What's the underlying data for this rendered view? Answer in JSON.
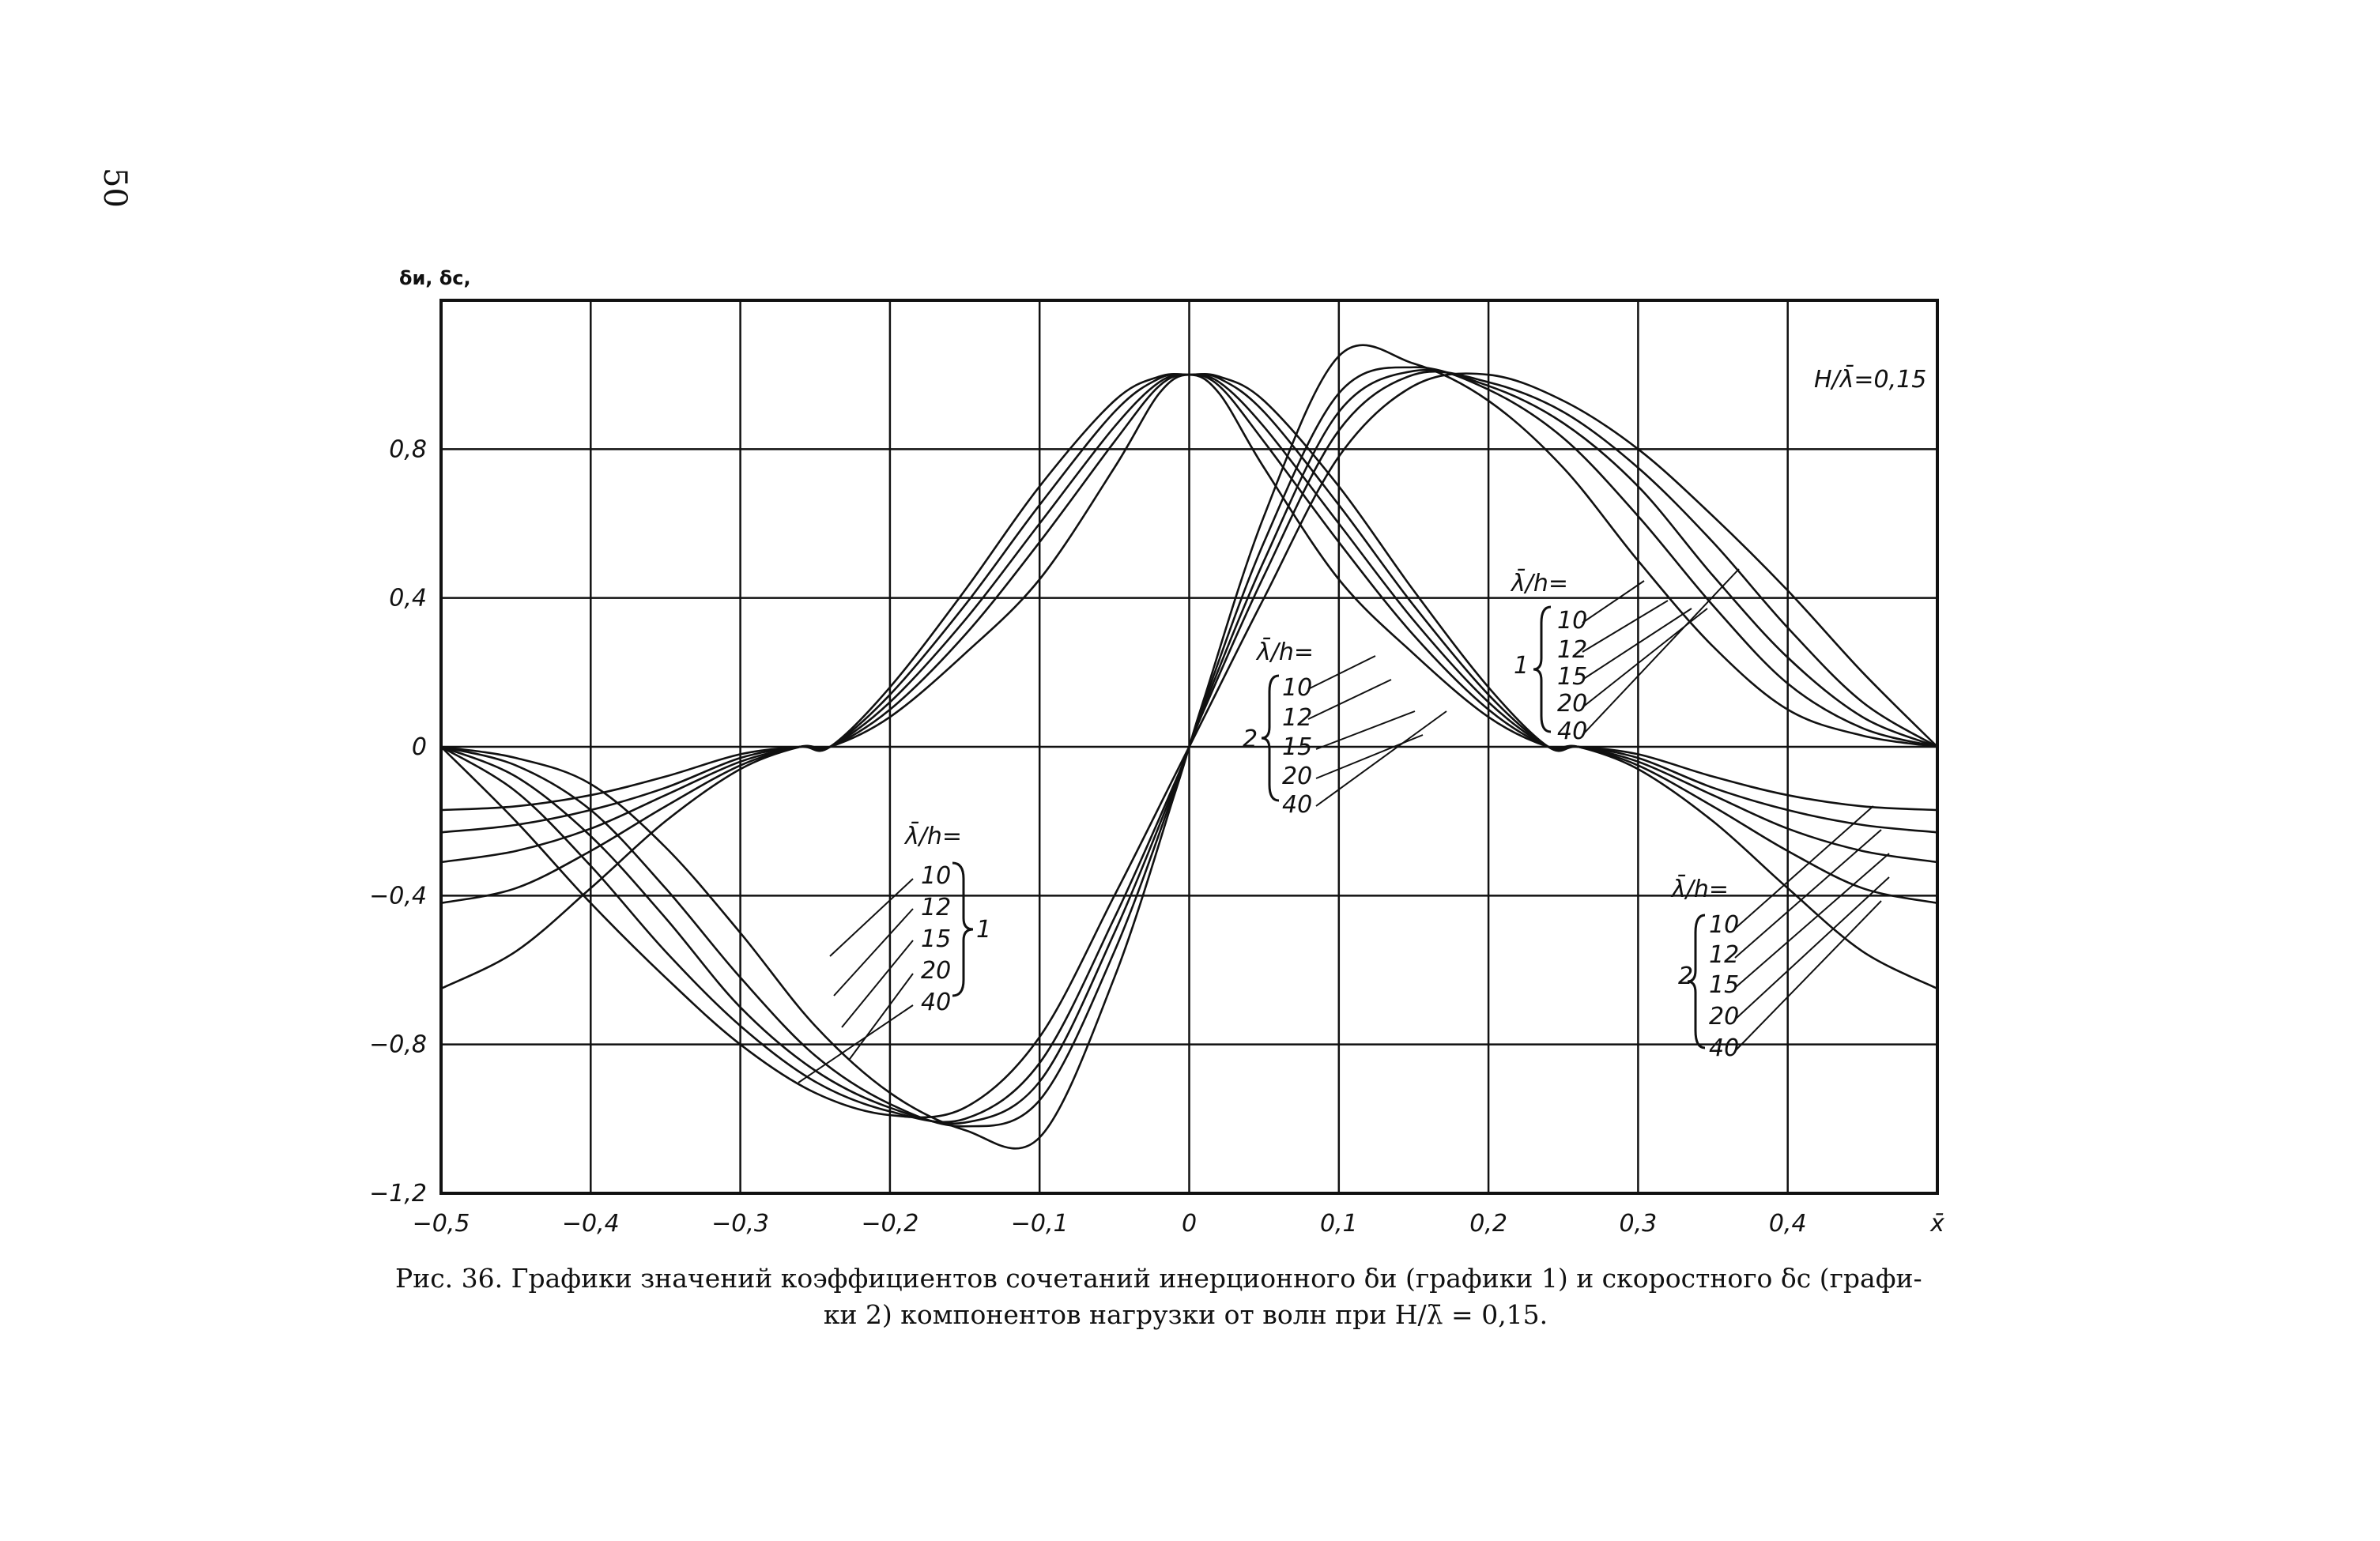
{
  "page_number": "50",
  "caption": {
    "line1": "Рис. 36. Графики значений коэффициентов сочетаний инерционного δи (графики 1) и скоростного δс (графи-",
    "line2": "ки 2) компонентов нагрузки от волн при H/λ̄ = 0,15."
  },
  "chart_data": {
    "type": "line",
    "ylabel": "δи, δс,",
    "xlabel": "x̄",
    "xlim": [
      -0.5,
      0.5
    ],
    "ylim": [
      -1.2,
      1.2
    ],
    "grid": true,
    "x_tick_labels": [
      "−0,5",
      "−0,4",
      "−0,3",
      "−0,2",
      "−0,1",
      "0",
      "0,1",
      "0,2",
      "0,3",
      "0,4",
      "x̄"
    ],
    "y_tick_labels": [
      "0,8",
      "0,4",
      "0",
      "−0,4",
      "−0,8",
      "−1,2"
    ],
    "annotation_top_right": "H/λ̄=0,15",
    "family_label_text": "λ̄/h=",
    "ratios": [
      "10",
      "12",
      "15",
      "20",
      "40"
    ],
    "group_1": "1",
    "group_2": "2",
    "series": [
      {
        "group": "1",
        "ratio": "10",
        "x": [
          -0.5,
          -0.45,
          -0.4,
          -0.35,
          -0.3,
          -0.26,
          -0.24,
          -0.2,
          -0.15,
          -0.1,
          -0.05,
          -0.02,
          0,
          0.02,
          0.05,
          0.1,
          0.15,
          0.2,
          0.24,
          0.26,
          0.3,
          0.35,
          0.4,
          0.45,
          0.5
        ],
        "y": [
          -0.65,
          -0.55,
          -0.38,
          -0.2,
          -0.06,
          0.0,
          0.0,
          0.08,
          0.25,
          0.45,
          0.75,
          0.95,
          1.0,
          0.95,
          0.75,
          0.45,
          0.25,
          0.08,
          0.0,
          0.0,
          -0.06,
          -0.2,
          -0.38,
          -0.55,
          -0.65
        ]
      },
      {
        "group": "1",
        "ratio": "12",
        "x": [
          -0.5,
          -0.45,
          -0.4,
          -0.35,
          -0.3,
          -0.26,
          -0.24,
          -0.2,
          -0.15,
          -0.1,
          -0.05,
          -0.02,
          0,
          0.02,
          0.05,
          0.1,
          0.15,
          0.2,
          0.24,
          0.26,
          0.3,
          0.35,
          0.4,
          0.45,
          0.5
        ],
        "y": [
          -0.42,
          -0.38,
          -0.28,
          -0.16,
          -0.05,
          0.0,
          0.0,
          0.1,
          0.3,
          0.55,
          0.82,
          0.97,
          1.0,
          0.97,
          0.82,
          0.55,
          0.3,
          0.1,
          0.0,
          0.0,
          -0.05,
          -0.16,
          -0.28,
          -0.38,
          -0.42
        ]
      },
      {
        "group": "1",
        "ratio": "15",
        "x": [
          -0.5,
          -0.45,
          -0.4,
          -0.35,
          -0.3,
          -0.26,
          -0.24,
          -0.2,
          -0.15,
          -0.1,
          -0.05,
          -0.02,
          0,
          0.02,
          0.05,
          0.1,
          0.15,
          0.2,
          0.24,
          0.26,
          0.3,
          0.35,
          0.4,
          0.45,
          0.5
        ],
        "y": [
          -0.31,
          -0.28,
          -0.22,
          -0.13,
          -0.04,
          0.0,
          0.0,
          0.12,
          0.34,
          0.6,
          0.86,
          0.98,
          1.0,
          0.98,
          0.86,
          0.6,
          0.34,
          0.12,
          0.0,
          0.0,
          -0.04,
          -0.13,
          -0.22,
          -0.28,
          -0.31
        ]
      },
      {
        "group": "1",
        "ratio": "20",
        "x": [
          -0.5,
          -0.45,
          -0.4,
          -0.35,
          -0.3,
          -0.26,
          -0.24,
          -0.2,
          -0.15,
          -0.1,
          -0.05,
          -0.02,
          0,
          0.02,
          0.05,
          0.1,
          0.15,
          0.2,
          0.24,
          0.26,
          0.3,
          0.35,
          0.4,
          0.45,
          0.5
        ],
        "y": [
          -0.23,
          -0.21,
          -0.17,
          -0.11,
          -0.03,
          0.0,
          0.0,
          0.14,
          0.38,
          0.65,
          0.9,
          0.99,
          1.0,
          0.99,
          0.9,
          0.65,
          0.38,
          0.14,
          0.0,
          0.0,
          -0.03,
          -0.11,
          -0.17,
          -0.21,
          -0.23
        ]
      },
      {
        "group": "1",
        "ratio": "40",
        "x": [
          -0.5,
          -0.45,
          -0.4,
          -0.35,
          -0.3,
          -0.26,
          -0.24,
          -0.2,
          -0.15,
          -0.1,
          -0.05,
          -0.02,
          0,
          0.02,
          0.05,
          0.1,
          0.15,
          0.2,
          0.24,
          0.26,
          0.3,
          0.35,
          0.4,
          0.45,
          0.5
        ],
        "y": [
          -0.17,
          -0.16,
          -0.13,
          -0.08,
          -0.02,
          0.0,
          0.0,
          0.16,
          0.42,
          0.7,
          0.93,
          0.995,
          1.0,
          0.995,
          0.93,
          0.7,
          0.42,
          0.16,
          0.0,
          0.0,
          -0.02,
          -0.08,
          -0.13,
          -0.16,
          -0.17
        ]
      },
      {
        "group": "2",
        "ratio": "10",
        "x": [
          -0.5,
          -0.45,
          -0.4,
          -0.35,
          -0.3,
          -0.25,
          -0.2,
          -0.15,
          -0.1,
          -0.05,
          -0.01,
          0,
          0.01,
          0.05,
          0.1,
          0.15,
          0.2,
          0.25,
          0.3,
          0.35,
          0.4,
          0.45,
          0.5
        ],
        "y": [
          0.0,
          -0.2,
          -0.42,
          -0.62,
          -0.8,
          -0.93,
          -0.99,
          -0.97,
          -0.78,
          -0.4,
          -0.08,
          0.0,
          0.08,
          0.4,
          0.78,
          0.97,
          1.0,
          0.93,
          0.8,
          0.62,
          0.42,
          0.2,
          0.0
        ]
      },
      {
        "group": "2",
        "ratio": "12",
        "x": [
          -0.5,
          -0.45,
          -0.4,
          -0.35,
          -0.3,
          -0.25,
          -0.2,
          -0.15,
          -0.1,
          -0.05,
          -0.01,
          0,
          0.01,
          0.05,
          0.1,
          0.15,
          0.2,
          0.25,
          0.3,
          0.35,
          0.4,
          0.45,
          0.5
        ],
        "y": [
          0.0,
          -0.12,
          -0.32,
          -0.55,
          -0.75,
          -0.9,
          -0.98,
          -1.0,
          -0.85,
          -0.46,
          -0.1,
          0.0,
          0.1,
          0.46,
          0.85,
          1.0,
          0.98,
          0.9,
          0.75,
          0.55,
          0.32,
          0.12,
          0.0
        ]
      },
      {
        "group": "2",
        "ratio": "15",
        "x": [
          -0.5,
          -0.45,
          -0.4,
          -0.35,
          -0.3,
          -0.25,
          -0.2,
          -0.15,
          -0.1,
          -0.05,
          -0.01,
          0,
          0.01,
          0.05,
          0.1,
          0.15,
          0.2,
          0.25,
          0.3,
          0.35,
          0.4,
          0.45,
          0.5
        ],
        "y": [
          0.0,
          -0.08,
          -0.24,
          -0.46,
          -0.7,
          -0.87,
          -0.97,
          -1.01,
          -0.9,
          -0.5,
          -0.11,
          0.0,
          0.11,
          0.5,
          0.9,
          1.01,
          0.97,
          0.87,
          0.7,
          0.46,
          0.24,
          0.08,
          0.0
        ]
      },
      {
        "group": "2",
        "ratio": "20",
        "x": [
          -0.5,
          -0.45,
          -0.4,
          -0.35,
          -0.3,
          -0.25,
          -0.2,
          -0.15,
          -0.1,
          -0.05,
          -0.01,
          0,
          0.01,
          0.05,
          0.1,
          0.15,
          0.2,
          0.25,
          0.3,
          0.35,
          0.4,
          0.45,
          0.5
        ],
        "y": [
          0.0,
          -0.05,
          -0.17,
          -0.38,
          -0.62,
          -0.83,
          -0.96,
          -1.02,
          -0.95,
          -0.55,
          -0.12,
          0.0,
          0.12,
          0.55,
          0.95,
          1.02,
          0.96,
          0.83,
          0.62,
          0.38,
          0.17,
          0.05,
          0.0
        ]
      },
      {
        "group": "2",
        "ratio": "40",
        "x": [
          -0.5,
          -0.45,
          -0.4,
          -0.35,
          -0.3,
          -0.25,
          -0.2,
          -0.15,
          -0.1,
          -0.05,
          -0.01,
          0,
          0.01,
          0.05,
          0.1,
          0.15,
          0.2,
          0.25,
          0.3,
          0.35,
          0.4,
          0.45,
          0.5
        ],
        "y": [
          0.0,
          -0.03,
          -0.1,
          -0.27,
          -0.5,
          -0.75,
          -0.93,
          -1.03,
          -1.05,
          -0.62,
          -0.13,
          0.0,
          0.13,
          0.62,
          1.05,
          1.03,
          0.93,
          0.75,
          0.5,
          0.27,
          0.1,
          0.03,
          0.0
        ]
      }
    ]
  }
}
